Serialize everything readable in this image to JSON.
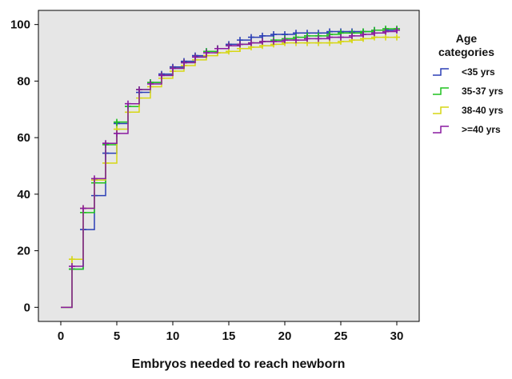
{
  "chart_data": {
    "type": "line",
    "step": true,
    "xlabel": "Embryos needed to reach newborn",
    "ylabel": "",
    "xlim": [
      -2,
      32
    ],
    "ylim": [
      -5,
      105
    ],
    "xticks": [
      0,
      5,
      10,
      15,
      20,
      25,
      30
    ],
    "yticks": [
      0,
      20,
      40,
      60,
      80,
      100
    ],
    "grid": false,
    "background": "#e6e6e6",
    "legend": {
      "title": [
        "Age",
        "categories"
      ],
      "placement": "right"
    },
    "series": [
      {
        "name": "<35 yrs",
        "color": "#2b3fb5",
        "x": [
          0,
          1,
          2,
          3,
          4,
          5,
          6,
          7,
          8,
          9,
          10,
          11,
          12,
          13,
          14,
          15,
          16,
          17,
          18,
          19,
          20,
          21,
          22,
          23,
          24,
          25,
          26,
          27,
          28,
          29,
          30
        ],
        "y": [
          0,
          13.5,
          27.5,
          39.5,
          54.5,
          65,
          71,
          76,
          79.5,
          82.5,
          85,
          87,
          89,
          90.5,
          91.5,
          93,
          94.5,
          95.5,
          96,
          96.5,
          96.5,
          97,
          97,
          97,
          97.5,
          97.5,
          97.5,
          97.5,
          98,
          98,
          98
        ]
      },
      {
        "name": "35-37 yrs",
        "color": "#1ec21e",
        "x": [
          0,
          1,
          2,
          3,
          4,
          5,
          6,
          7,
          8,
          9,
          10,
          11,
          12,
          13,
          14,
          15,
          16,
          17,
          18,
          19,
          20,
          21,
          22,
          23,
          24,
          25,
          26,
          27,
          28,
          29,
          30
        ],
        "y": [
          0,
          13.5,
          33.5,
          44,
          57.5,
          65.5,
          71,
          77,
          79.5,
          82,
          84.5,
          86.5,
          88.5,
          90.5,
          91.5,
          92.5,
          93,
          93.5,
          94,
          94.5,
          95,
          95.5,
          96,
          96,
          96.5,
          97,
          97,
          97.5,
          98,
          98.5,
          98.5
        ]
      },
      {
        "name": "38-40 yrs",
        "color": "#d6d614",
        "x": [
          0,
          1,
          2,
          3,
          4,
          5,
          6,
          7,
          8,
          9,
          10,
          11,
          12,
          13,
          14,
          15,
          16,
          17,
          18,
          19,
          20,
          21,
          22,
          23,
          24,
          25,
          26,
          27,
          28,
          29,
          30
        ],
        "y": [
          0,
          17,
          35,
          45,
          51,
          63,
          69,
          74,
          78,
          81,
          83.5,
          85.5,
          87.5,
          89,
          90,
          90.5,
          91.5,
          92,
          92.5,
          93,
          93.5,
          93.5,
          93.5,
          93.5,
          93.5,
          94,
          94.5,
          95,
          95.5,
          95.5,
          95.5
        ]
      },
      {
        "name": ">=40 yrs",
        "color": "#8a1aa0",
        "x": [
          0,
          1,
          2,
          3,
          4,
          5,
          6,
          7,
          8,
          9,
          10,
          11,
          12,
          13,
          14,
          15,
          16,
          17,
          18,
          19,
          20,
          21,
          22,
          23,
          24,
          25,
          26,
          27,
          28,
          29,
          30
        ],
        "y": [
          0,
          14.5,
          35,
          45.5,
          58,
          61.5,
          72,
          77,
          79,
          82,
          84.5,
          86.5,
          88.5,
          90,
          91.5,
          92.5,
          93,
          93.5,
          94,
          94,
          94.5,
          94.5,
          95,
          95,
          95.5,
          95.5,
          96,
          96.5,
          97,
          97.5,
          98
        ]
      }
    ]
  }
}
